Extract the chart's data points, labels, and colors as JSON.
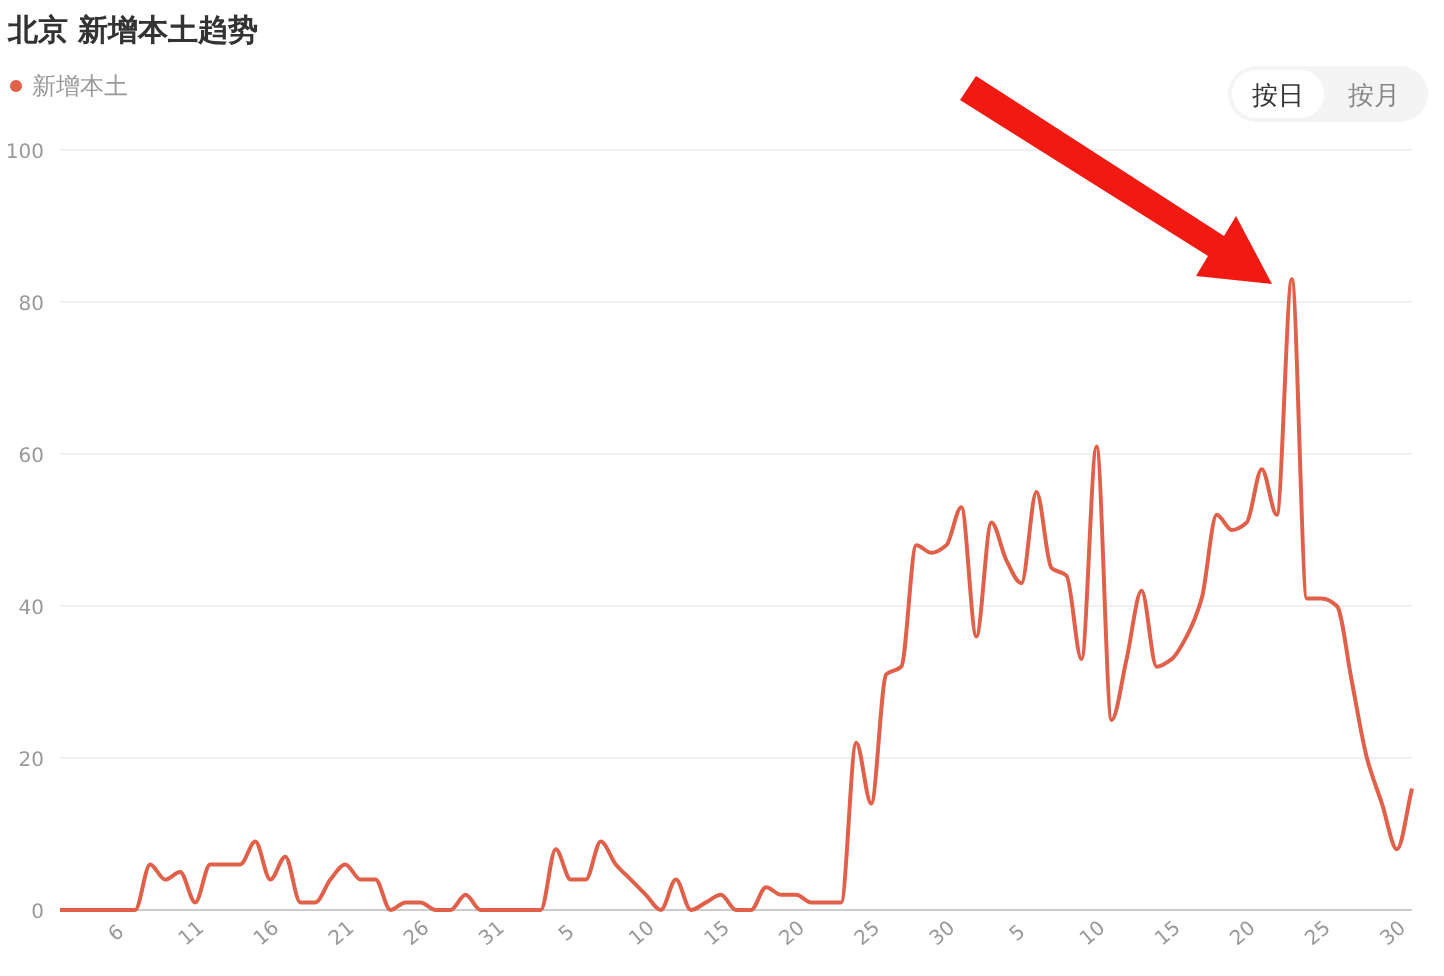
{
  "chart_data": {
    "type": "line",
    "title": "北京 新增本土趋势",
    "legend": "top left",
    "grid": "y",
    "marker": "none",
    "line_style": "solid",
    "ylim": [
      0,
      100
    ],
    "yticks": [
      0,
      20,
      40,
      60,
      80,
      100
    ],
    "categories": [
      null,
      null,
      null,
      null,
      "6",
      null,
      null,
      null,
      null,
      "11",
      null,
      null,
      null,
      null,
      "16",
      null,
      null,
      null,
      null,
      "21",
      null,
      null,
      null,
      null,
      "26",
      null,
      null,
      null,
      null,
      "31",
      null,
      null,
      null,
      null,
      "5",
      null,
      null,
      null,
      null,
      "10",
      null,
      null,
      null,
      null,
      "15",
      null,
      null,
      null,
      null,
      "20",
      null,
      null,
      null,
      null,
      "25",
      null,
      null,
      null,
      null,
      "30",
      null,
      null,
      null,
      null,
      "5",
      null,
      null,
      null,
      null,
      "10",
      null,
      null,
      null,
      null,
      "15",
      null,
      null,
      null,
      null,
      "20",
      null,
      null,
      null,
      null,
      "25",
      null,
      null,
      null,
      null,
      "30",
      null
    ],
    "series": [
      {
        "name": "新增本土",
        "color": "#e0604a",
        "values": [
          0,
          0,
          0,
          0,
          0,
          0,
          6,
          4,
          5,
          1,
          6,
          6,
          6,
          9,
          4,
          7,
          1,
          1,
          4,
          6,
          4,
          4,
          0,
          1,
          1,
          0,
          0,
          2,
          0,
          0,
          0,
          0,
          0,
          8,
          4,
          4,
          9,
          6,
          4,
          2,
          0,
          4,
          0,
          1,
          2,
          0,
          0,
          3,
          2,
          2,
          1,
          1,
          1,
          22,
          14,
          31,
          32,
          48,
          47,
          48,
          53,
          36,
          51,
          46,
          43,
          55,
          45,
          44,
          33,
          61,
          25,
          33,
          42,
          32,
          33,
          36,
          41,
          52,
          50,
          51,
          58,
          52,
          83,
          41,
          41,
          40,
          30,
          20,
          14,
          8,
          16
        ]
      }
    ],
    "annotations": [
      "按日",
      "按月"
    ]
  }
}
